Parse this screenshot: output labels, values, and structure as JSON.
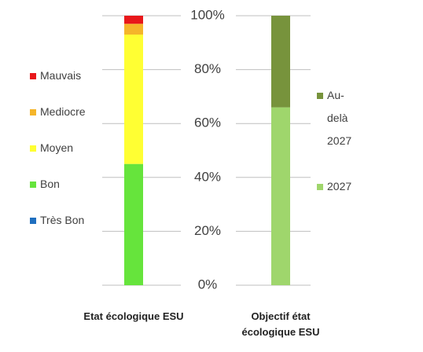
{
  "chart_data": [
    {
      "type": "bar",
      "categories": [
        "Etat écologique ESU"
      ],
      "ylim": [
        0,
        100
      ],
      "yticks": [
        {
          "value": 0,
          "label": "0%"
        },
        {
          "value": 20,
          "label": "20%"
        },
        {
          "value": 40,
          "label": "40%"
        },
        {
          "value": 60,
          "label": "60%"
        },
        {
          "value": 80,
          "label": "80%"
        },
        {
          "value": 100,
          "label": "100%"
        }
      ],
      "series": [
        {
          "name": "Très Bon",
          "color": "#1f6fbf",
          "values": [
            0
          ]
        },
        {
          "name": "Bon",
          "color": "#66e43c",
          "values": [
            45
          ]
        },
        {
          "name": "Moyen",
          "color": "#ffff33",
          "values": [
            48
          ]
        },
        {
          "name": "Mediocre",
          "color": "#f5b52a",
          "values": [
            4
          ]
        },
        {
          "name": "Mauvais",
          "color": "#e8171a",
          "values": [
            3
          ]
        }
      ]
    },
    {
      "type": "bar",
      "categories": [
        "Objectif état écologique ESU"
      ],
      "ylim": [
        0,
        100
      ],
      "series": [
        {
          "name": "2027",
          "color": "#9fd66c",
          "values": [
            66
          ]
        },
        {
          "name": "Au-delà 2027",
          "color": "#77933c",
          "values": [
            34
          ]
        }
      ]
    }
  ]
}
